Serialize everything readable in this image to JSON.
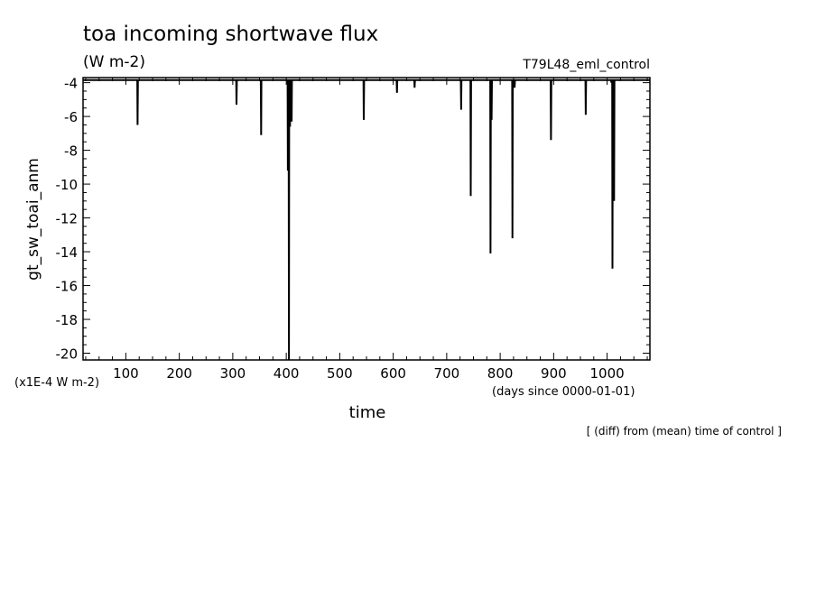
{
  "chart_data": {
    "type": "line",
    "title": "toa incoming shortwave flux",
    "subtitle": "(W m-2)",
    "experiment": "T79L48_eml_control",
    "xlabel": "time",
    "x_units": "(days since 0000-01-01)",
    "ylabel": "gt_sw_toai_anm",
    "y_units": "(x1E-4 W m-2)",
    "note": "[ (diff) from (mean) time of control ]",
    "xlim": [
      20,
      1080
    ],
    "ylim": [
      -20.4,
      -3.7
    ],
    "baseline": -3.85,
    "x_ticks": [
      100,
      200,
      300,
      400,
      500,
      600,
      700,
      800,
      900,
      1000
    ],
    "x_tick_labels": [
      "100",
      "200",
      "300",
      "400",
      "500",
      "600",
      "700",
      "800",
      "900",
      "1000"
    ],
    "y_ticks": [
      -4,
      -6,
      -8,
      -10,
      -12,
      -14,
      -16,
      -18,
      -20
    ],
    "y_tick_labels": [
      "-4",
      "-6",
      "-8",
      "-10",
      "-12",
      "-14",
      "-16",
      "-18",
      "-20"
    ],
    "spikes": [
      {
        "x": 122,
        "y": -6.5
      },
      {
        "x": 307,
        "y": -5.3
      },
      {
        "x": 353,
        "y": -7.1
      },
      {
        "x": 403,
        "y": -9.2
      },
      {
        "x": 405,
        "y": -20.4
      },
      {
        "x": 407,
        "y": -6.6
      },
      {
        "x": 410,
        "y": -6.3
      },
      {
        "x": 545,
        "y": -6.2
      },
      {
        "x": 607,
        "y": -4.6
      },
      {
        "x": 640,
        "y": -4.3
      },
      {
        "x": 727,
        "y": -5.6
      },
      {
        "x": 745,
        "y": -10.7
      },
      {
        "x": 782,
        "y": -14.1
      },
      {
        "x": 784,
        "y": -6.2
      },
      {
        "x": 823,
        "y": -13.2
      },
      {
        "x": 827,
        "y": -4.3
      },
      {
        "x": 895,
        "y": -7.4
      },
      {
        "x": 960,
        "y": -5.9
      },
      {
        "x": 1008,
        "y": -4.0
      },
      {
        "x": 1010,
        "y": -15.0
      },
      {
        "x": 1013,
        "y": -11.0
      }
    ],
    "grid": false,
    "line_color": "#000000"
  }
}
